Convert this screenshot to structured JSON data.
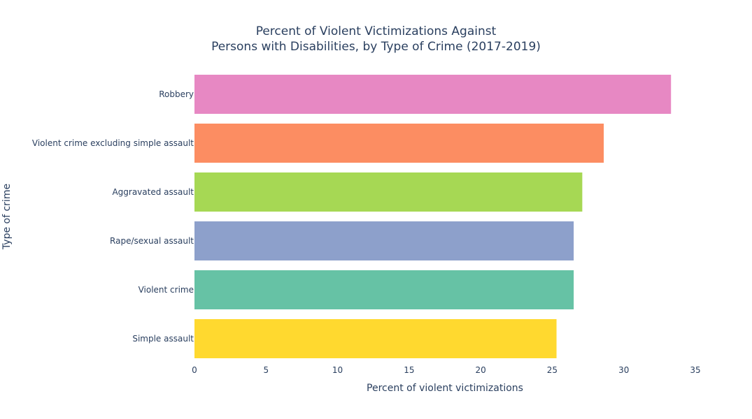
{
  "chart_data": {
    "type": "bar",
    "orientation": "horizontal",
    "title_lines": [
      "Percent of Violent Victimizations Against",
      "Persons with Disabilities, by Type of Crime (2017-2019)"
    ],
    "xlabel": "Percent of violent victimizations",
    "ylabel": "Type of crime",
    "xlim": [
      0,
      35
    ],
    "xticks": [
      "0",
      "5",
      "10",
      "15",
      "20",
      "25",
      "30",
      "35"
    ],
    "grid": false,
    "legend": "none",
    "categories": [
      "Robbery",
      "Violent crime excluding simple assault",
      "Aggravated assault",
      "Rape/sexual assault",
      "Violent crime",
      "Simple assault"
    ],
    "values": [
      33.3,
      28.6,
      27.1,
      26.5,
      26.5,
      25.3
    ],
    "colors": [
      "#e788c3",
      "#fc8d62",
      "#a6d854",
      "#8da0cb",
      "#66c2a5",
      "#ffd92f"
    ]
  }
}
